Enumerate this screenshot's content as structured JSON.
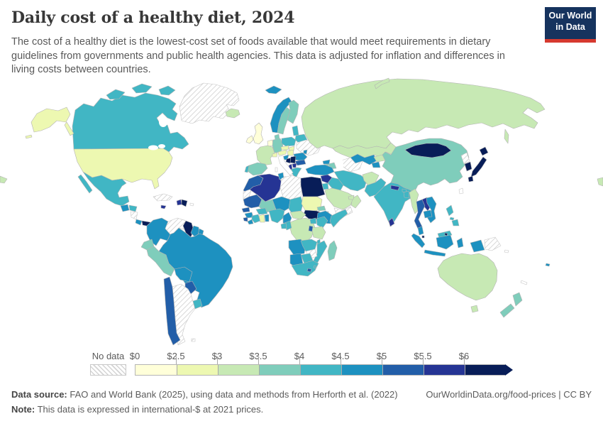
{
  "header": {
    "title": "Daily cost of a healthy diet, 2024",
    "subtitle": "The cost of a healthy diet is the lowest-cost set of foods available that would meet requirements in dietary guidelines from governments and public health agencies. This data is adjusted for inflation and differences in living costs between countries."
  },
  "logo": {
    "line1": "Our World",
    "line2": "in Data",
    "bg_color": "#16335e",
    "bar_color": "#d6392f"
  },
  "legend": {
    "no_data_label": "No data",
    "tick_labels": [
      "$0",
      "$2.5",
      "$3",
      "$3.5",
      "$4",
      "$4.5",
      "$5",
      "$5.5",
      "$6"
    ],
    "open_ended_arrow": true
  },
  "footer": {
    "source_label": "Data source:",
    "source_text": " FAO and World Bank (2025), using data and methods from Herforth et al. (2022)",
    "link_text": "OurWorldinData.org/food-prices | CC BY",
    "note_label": "Note:",
    "note_text": " This data is expressed in international-$ at 2021 prices."
  },
  "chart_data": {
    "type": "choropleth_map",
    "title": "Daily cost of a healthy diet, 2024",
    "year": 2024,
    "bin_edge_labels": [
      "$0",
      "$2.5",
      "$3",
      "$3.5",
      "$4",
      "$4.5",
      "$5",
      "$5.5",
      "$6"
    ],
    "bin_ranges": [
      "$0-2.5",
      "$2.5-3",
      "$3-3.5",
      "$3.5-4",
      "$4-4.5",
      "$4.5-5",
      "$5-5.5",
      "$5.5-6",
      "$6+"
    ],
    "bin_colors": [
      "#ffffd9",
      "#edf8b1",
      "#c7e9b4",
      "#7fcdbb",
      "#41b6c4",
      "#1d91c0",
      "#225ea8",
      "#253494",
      "#081d58"
    ],
    "no_data_style": "diagonal-hatch",
    "countries": {
      "united-states": 1,
      "canada": 4,
      "greenland": "nd",
      "iceland": 2,
      "mexico": 4,
      "guatemala": 5,
      "honduras": 4,
      "nicaragua": "nd",
      "costa-rica": 5,
      "panama": 8,
      "cuba": "nd",
      "jamaica": 7,
      "haiti": 7,
      "dominican-republic": 8,
      "puerto-rico": "none",
      "trinidad-and-tobago": 8,
      "colombia": 5,
      "venezuela": "nd",
      "guyana": 8,
      "suriname": 5,
      "french-guiana": 5,
      "ecuador": 3,
      "peru": 3,
      "brazil": 5,
      "bolivia": 5,
      "paraguay": 6,
      "uruguay": 4,
      "chile": 6,
      "argentina": "nd",
      "falkland-islands": "nd",
      "united-kingdom": 0,
      "ireland": 0,
      "norway": 5,
      "svalbard": 5,
      "sweden": 3,
      "finland": 3,
      "denmark": 3,
      "netherlands": 0,
      "germany": 3,
      "france": 2,
      "spain": 3,
      "portugal": 4,
      "italy": "none",
      "switzerland": 1,
      "austria": 1,
      "czechia": 1,
      "slovakia": 1,
      "poland": 4,
      "baltic-states": 4,
      "belarus": 4,
      "ukraine": "nd",
      "moldova": 5,
      "hungary": 1,
      "romania": 5,
      "croatia": 5,
      "bosnia-and-herzegovina": 8,
      "serbia": 8,
      "albania": 7,
      "north-macedonia": 7,
      "bulgaria": 6,
      "greece": 4,
      "russia": 2,
      "morocco": 6,
      "western-sahara": "nd",
      "algeria": 7,
      "tunisia": 5,
      "libya": "nd",
      "egypt": 8,
      "mauritania": 6,
      "senegal": 6,
      "guinea": 5,
      "sierra-leone": 6,
      "liberia": 5,
      "ivory-coast": 4,
      "ghana": 1,
      "togo-benin": 5,
      "burkina-faso": 4,
      "mali": 3,
      "niger": 5,
      "nigeria": 4,
      "chad": 4,
      "sudan": 1,
      "eritrea": 3,
      "djibouti": 4,
      "ethiopia": 5,
      "somalia": 4,
      "cameroon": 5,
      "central-african-republic": 2,
      "south-sudan": 8,
      "democratic-republic-of-congo": 2,
      "congo": 4,
      "gabon": 4,
      "uganda": 4,
      "kenya": 4,
      "tanzania": 2,
      "rwanda-burundi": 6,
      "angola": 5,
      "zambia": 4,
      "malawi": 4,
      "mozambique": 4,
      "zimbabwe": "nd",
      "botswana": 4,
      "namibia": 5,
      "south-africa": 4,
      "lesotho": 6,
      "eswatini": 4,
      "madagascar": 3,
      "turkey": 5,
      "syria": 7,
      "israel": "none",
      "jordan": 4,
      "iraq": 4,
      "saudi-arabia": 2,
      "yemen": "nd",
      "oman": 2,
      "united-arab-emirates": 2,
      "iran": 4,
      "georgia": 5,
      "armenia": 3,
      "azerbaijan": 3,
      "kazakhstan": 2,
      "uzbekistan": 5,
      "turkmenistan": "nd",
      "kyrgyzstan": 2,
      "tajikistan": 5,
      "afghanistan": 2,
      "pakistan": 4,
      "india": 4,
      "nepal": 7,
      "bhutan": 4,
      "bangladesh": 4,
      "sri-lanka": 7,
      "myanmar": 2,
      "thailand": 6,
      "laos": 7,
      "cambodia": 5,
      "vietnam": 5,
      "malaysia": 5,
      "malaysia-borneo": 4,
      "brunei": 8,
      "singapore": 8,
      "indonesia": 5,
      "papua-new-guinea": "nd",
      "philippines": 4,
      "timor-leste": "none",
      "solomon-islands": "none",
      "china": 3,
      "mongolia": 8,
      "north-korea": "nd",
      "south-korea": 8,
      "japan": 8,
      "taiwan": "none",
      "australia": 2,
      "new-zealand": 3,
      "fiji": 5,
      "new-caledonia": "none"
    }
  }
}
